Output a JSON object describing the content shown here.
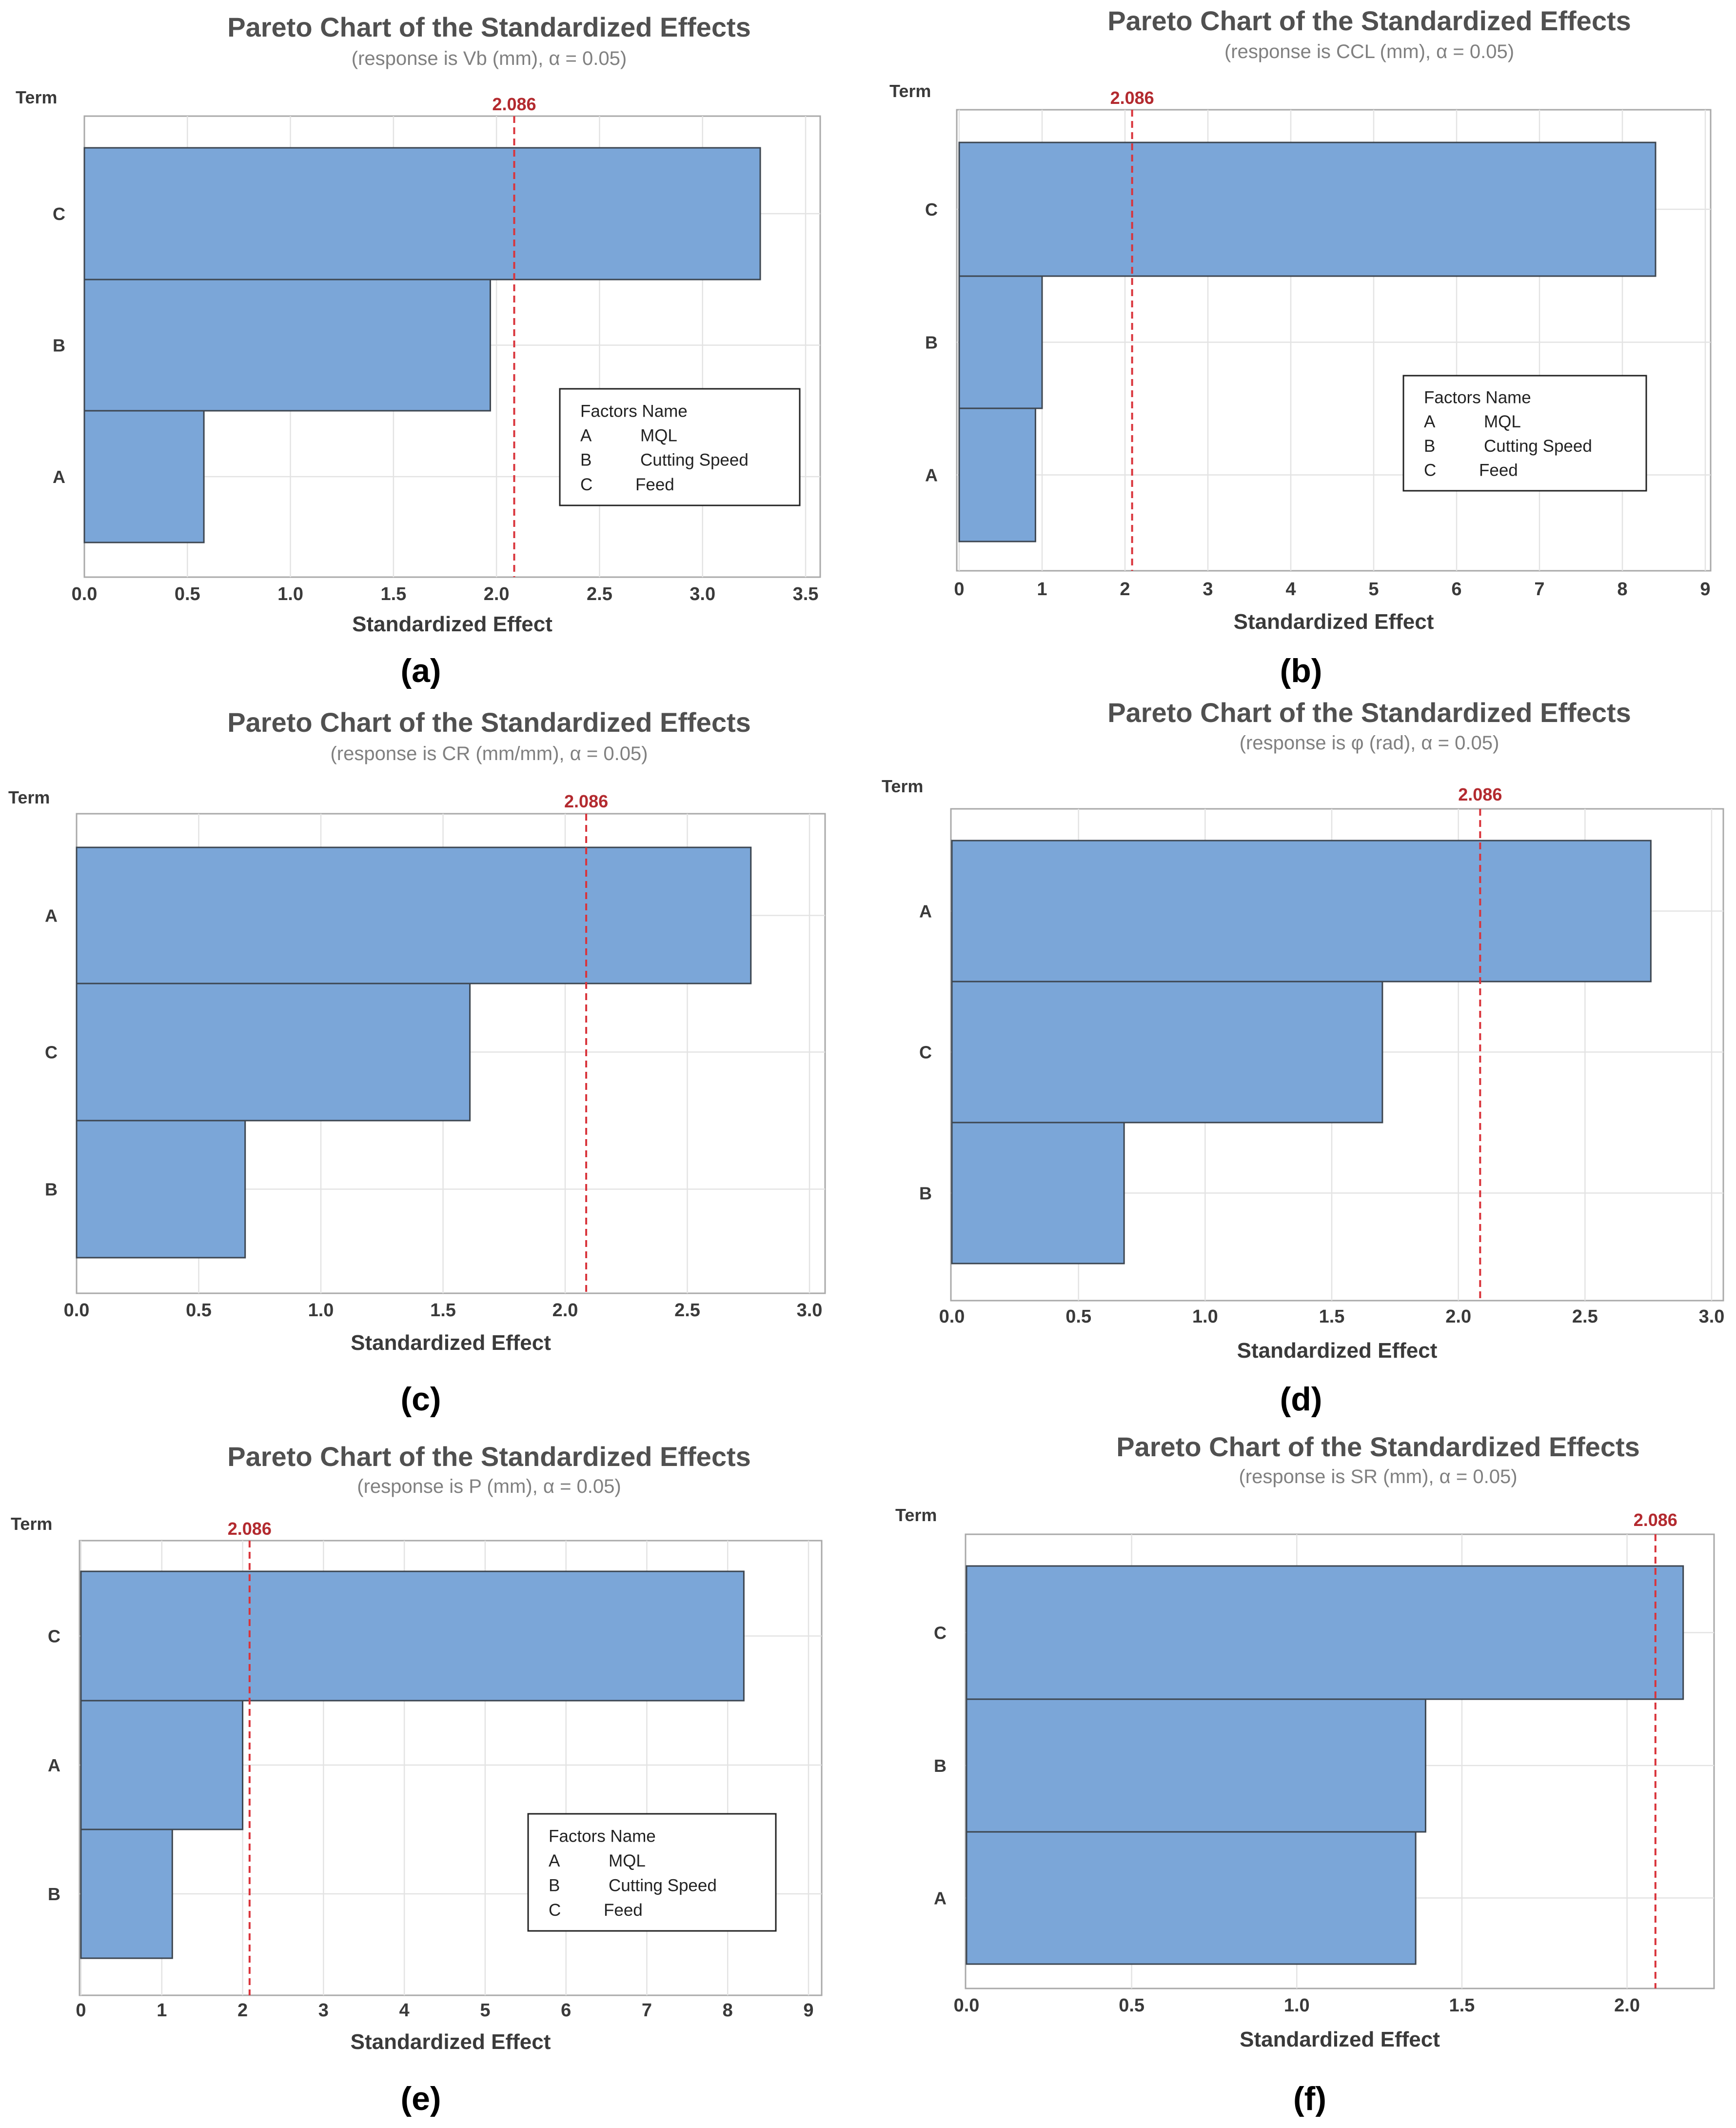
{
  "figure": {
    "panels": [
      "(a)",
      "(b)",
      "(c)",
      "(d)",
      "(e)",
      "(f)"
    ]
  },
  "colors": {
    "bar_fill": "#7ba6d8",
    "bar_stroke": "#3d4650",
    "reference_line": "#d9343b",
    "reference_label": "#b32a2f",
    "grid": "#e3e3e3",
    "frame": "#a9a9a9",
    "title": "#505050",
    "subtitle": "#808080",
    "axis_text": "#3a3a3a"
  },
  "chart_data": [
    {
      "type": "bar",
      "orientation": "horizontal",
      "panel_label": "(a)",
      "title": "Pareto Chart of the Standardized Effects",
      "subtitle": "(response is Vb (mm), α = 0.05)",
      "xlabel": "Standardized Effect",
      "ylabel": "Term",
      "categories": [
        "C",
        "B",
        "A"
      ],
      "values": [
        3.28,
        1.97,
        0.58
      ],
      "xlim": [
        0,
        3.5
      ],
      "xticks": [
        "0.0",
        "0.5",
        "1.0",
        "1.5",
        "2.0",
        "2.5",
        "3.0",
        "3.5"
      ],
      "xtick_values": [
        0,
        0.5,
        1.0,
        1.5,
        2.0,
        2.5,
        3.0,
        3.5
      ],
      "reference": {
        "value": 2.086,
        "label": "2.086"
      },
      "legend": {
        "placement": "bottom-right",
        "header": "Factors Name",
        "rows": [
          {
            "factor": "A",
            "name": "MQL"
          },
          {
            "factor": "B",
            "name": "Cutting Speed"
          },
          {
            "factor": "C",
            "name": "Feed"
          }
        ]
      }
    },
    {
      "type": "bar",
      "orientation": "horizontal",
      "panel_label": "(b)",
      "title": "Pareto Chart of the Standardized Effects",
      "subtitle": "(response is CCL (mm), α = 0.05)",
      "xlabel": "Standardized Effect",
      "ylabel": "Term",
      "categories": [
        "C",
        "B",
        "A"
      ],
      "values": [
        8.4,
        1.0,
        0.92
      ],
      "xlim": [
        0,
        9
      ],
      "xticks": [
        "0",
        "1",
        "2",
        "3",
        "4",
        "5",
        "6",
        "7",
        "8",
        "9"
      ],
      "xtick_values": [
        0,
        1,
        2,
        3,
        4,
        5,
        6,
        7,
        8,
        9
      ],
      "reference": {
        "value": 2.086,
        "label": "2.086"
      },
      "legend": {
        "placement": "bottom-right",
        "header": "Factors Name",
        "rows": [
          {
            "factor": "A",
            "name": "MQL"
          },
          {
            "factor": "B",
            "name": "Cutting Speed"
          },
          {
            "factor": "C",
            "name": "Feed"
          }
        ]
      }
    },
    {
      "type": "bar",
      "orientation": "horizontal",
      "panel_label": "(c)",
      "title": "Pareto Chart of the Standardized Effects",
      "subtitle": "(response is CR (mm/mm), α = 0.05)",
      "xlabel": "Standardized Effect",
      "ylabel": "Term",
      "categories": [
        "A",
        "C",
        "B"
      ],
      "values": [
        2.76,
        1.61,
        0.69
      ],
      "xlim": [
        0,
        3.0
      ],
      "xticks": [
        "0.0",
        "0.5",
        "1.0",
        "1.5",
        "2.0",
        "2.5",
        "3.0"
      ],
      "xtick_values": [
        0,
        0.5,
        1.0,
        1.5,
        2.0,
        2.5,
        3.0
      ],
      "reference": {
        "value": 2.086,
        "label": "2.086"
      },
      "legend": null
    },
    {
      "type": "bar",
      "orientation": "horizontal",
      "panel_label": "(d)",
      "title": "Pareto Chart of the Standardized Effects",
      "subtitle": "(response is φ (rad), α = 0.05)",
      "xlabel": "Standardized Effect",
      "ylabel": "Term",
      "categories": [
        "A",
        "C",
        "B"
      ],
      "values": [
        2.76,
        1.7,
        0.68
      ],
      "xlim": [
        0,
        3.0
      ],
      "xticks": [
        "0.0",
        "0.5",
        "1.0",
        "1.5",
        "2.0",
        "2.5",
        "3.0"
      ],
      "xtick_values": [
        0,
        0.5,
        1.0,
        1.5,
        2.0,
        2.5,
        3.0
      ],
      "reference": {
        "value": 2.086,
        "label": "2.086"
      },
      "legend": null
    },
    {
      "type": "bar",
      "orientation": "horizontal",
      "panel_label": "(e)",
      "title": "Pareto Chart of the Standardized Effects",
      "subtitle": "(response is P (mm), α = 0.05)",
      "xlabel": "Standardized Effect",
      "ylabel": "Term",
      "categories": [
        "C",
        "A",
        "B"
      ],
      "values": [
        8.2,
        2.0,
        1.13
      ],
      "xlim": [
        0,
        9
      ],
      "xticks": [
        "0",
        "1",
        "2",
        "3",
        "4",
        "5",
        "6",
        "7",
        "8",
        "9"
      ],
      "xtick_values": [
        0,
        1,
        2,
        3,
        4,
        5,
        6,
        7,
        8,
        9
      ],
      "reference": {
        "value": 2.086,
        "label": "2.086"
      },
      "legend": {
        "placement": "bottom-right",
        "header": "Factors Name",
        "rows": [
          {
            "factor": "A",
            "name": "MQL"
          },
          {
            "factor": "B",
            "name": "Cutting Speed"
          },
          {
            "factor": "C",
            "name": "Feed"
          }
        ]
      }
    },
    {
      "type": "bar",
      "orientation": "horizontal",
      "panel_label": "(f)",
      "title": "Pareto Chart of the Standardized Effects",
      "subtitle": "(response is SR (mm), α = 0.05)",
      "xlabel": "Standardized Effect",
      "ylabel": "Term",
      "categories": [
        "C",
        "B",
        "A"
      ],
      "values": [
        2.17,
        1.39,
        1.36
      ],
      "xlim": [
        0,
        2.2
      ],
      "xticks": [
        "0.0",
        "0.5",
        "1.0",
        "1.5",
        "2.0"
      ],
      "xtick_values": [
        0,
        0.5,
        1.0,
        1.5,
        2.0
      ],
      "reference": {
        "value": 2.086,
        "label": "2.086"
      },
      "legend": null
    }
  ]
}
